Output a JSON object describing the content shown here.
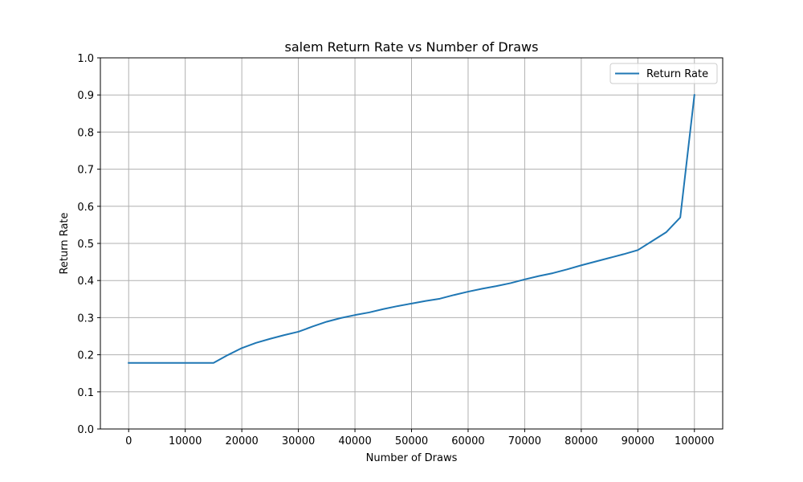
{
  "chart_data": {
    "type": "line",
    "title": "salem Return Rate vs Number of Draws",
    "xlabel": "Number of Draws",
    "ylabel": "Return Rate",
    "xlim": [
      -5000,
      105000
    ],
    "ylim": [
      0.0,
      1.0
    ],
    "xticks": [
      0,
      10000,
      20000,
      30000,
      40000,
      50000,
      60000,
      70000,
      80000,
      90000,
      100000
    ],
    "yticks": [
      0.0,
      0.1,
      0.2,
      0.3,
      0.4,
      0.5,
      0.6,
      0.7,
      0.8,
      0.9,
      1.0
    ],
    "xtick_labels": [
      "0",
      "10000",
      "20000",
      "30000",
      "40000",
      "50000",
      "60000",
      "70000",
      "80000",
      "90000",
      "100000"
    ],
    "ytick_labels": [
      "0.0",
      "0.1",
      "0.2",
      "0.3",
      "0.4",
      "0.5",
      "0.6",
      "0.7",
      "0.8",
      "0.9",
      "1.0"
    ],
    "grid": true,
    "legend_position": "top-right",
    "series": [
      {
        "name": "Return Rate",
        "color": "#1f77b4",
        "x": [
          0,
          2500,
          5000,
          7500,
          10000,
          12500,
          15000,
          17500,
          20000,
          22500,
          25000,
          27500,
          30000,
          32500,
          35000,
          37500,
          40000,
          42500,
          45000,
          47500,
          50000,
          52500,
          55000,
          57500,
          60000,
          62500,
          65000,
          67500,
          70000,
          72500,
          75000,
          77500,
          80000,
          82500,
          85000,
          87500,
          90000,
          92500,
          95000,
          97500,
          100000
        ],
        "y": [
          0.178,
          0.178,
          0.178,
          0.178,
          0.178,
          0.178,
          0.178,
          0.199,
          0.218,
          0.232,
          0.243,
          0.253,
          0.262,
          0.276,
          0.289,
          0.299,
          0.307,
          0.314,
          0.323,
          0.331,
          0.338,
          0.345,
          0.351,
          0.361,
          0.37,
          0.378,
          0.385,
          0.393,
          0.403,
          0.412,
          0.42,
          0.43,
          0.441,
          0.451,
          0.461,
          0.471,
          0.482,
          0.506,
          0.53,
          0.57,
          0.9
        ]
      }
    ]
  }
}
